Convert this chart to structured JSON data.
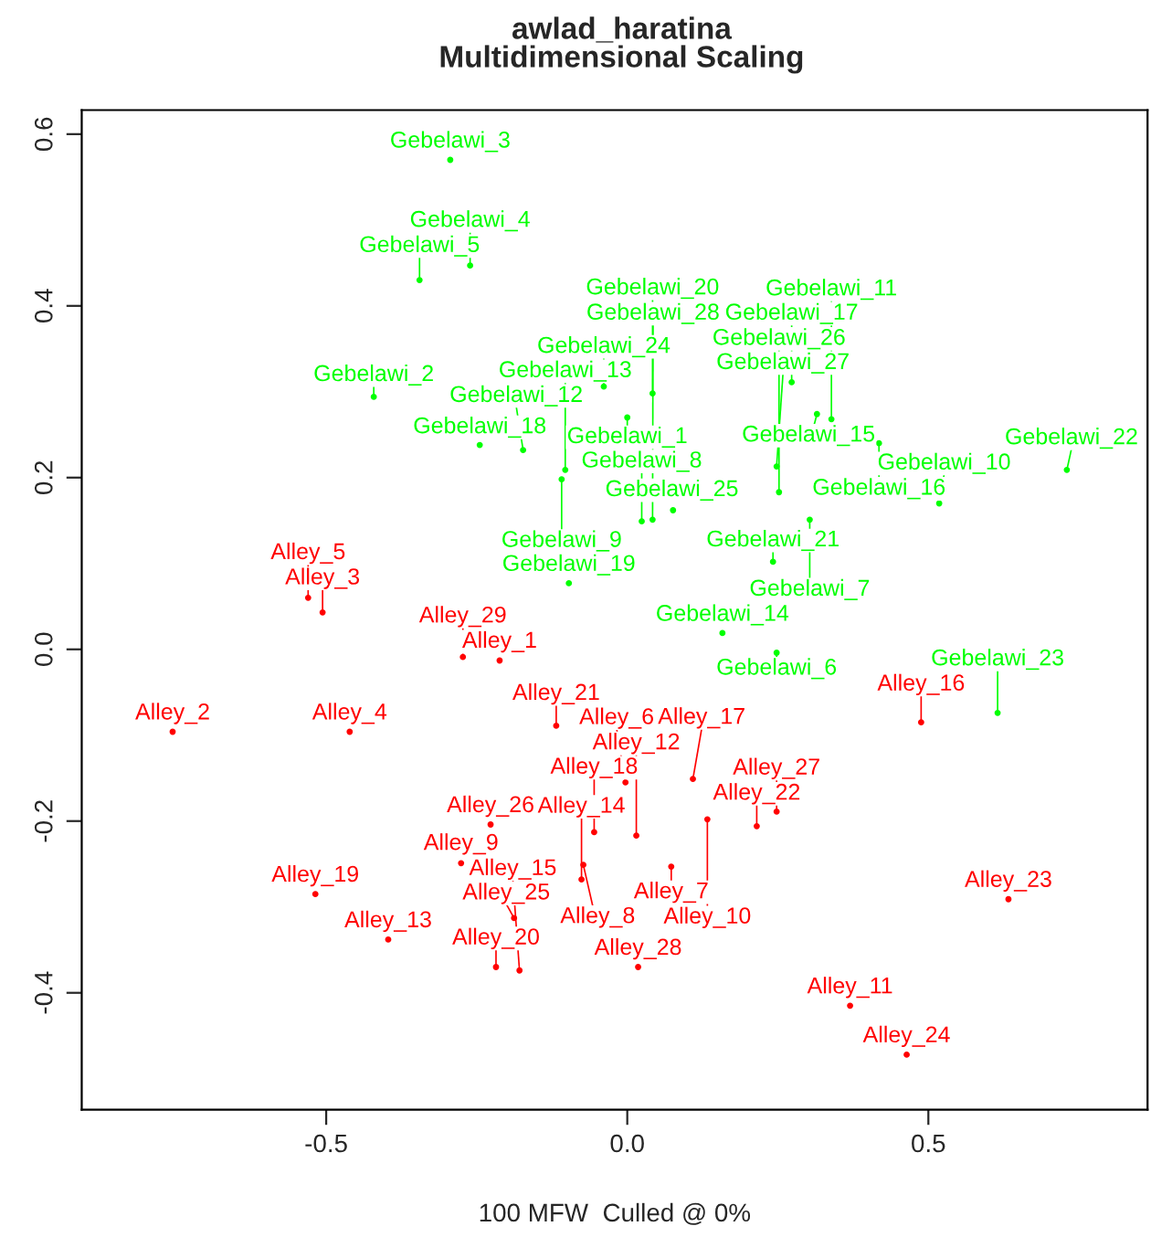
{
  "chart_data": {
    "type": "scatter",
    "title": "awlad_haratina",
    "subtitle": "Multidimensional Scaling",
    "xlabel": "100 MFW  Culled @ 0%",
    "xlim": [
      -0.906,
      0.864
    ],
    "ylim": [
      -0.536,
      0.628
    ],
    "xticks": [
      {
        "value": -0.5,
        "label": "-0.5"
      },
      {
        "value": 0.0,
        "label": "0.0"
      },
      {
        "value": 0.5,
        "label": "0.5"
      }
    ],
    "yticks": [
      {
        "value": -0.4,
        "label": "-0.4"
      },
      {
        "value": -0.2,
        "label": "-0.2"
      },
      {
        "value": 0.0,
        "label": "0.0"
      },
      {
        "value": 0.2,
        "label": "0.2"
      },
      {
        "value": 0.4,
        "label": "0.4"
      },
      {
        "value": 0.6,
        "label": "0.6"
      }
    ],
    "grid": false,
    "marker": "circle",
    "series": [
      {
        "color": "#00ff00",
        "x": [
          0.0,
          -0.421,
          -0.294,
          -0.261,
          -0.345,
          0.248,
          0.303,
          0.024,
          -0.109,
          0.518,
          0.339,
          -0.173,
          -0.103,
          0.158,
          0.315,
          0.418,
          0.273,
          -0.245,
          -0.097,
          0.042,
          0.242,
          0.73,
          0.615,
          -0.039,
          0.076,
          0.252,
          0.248,
          0.042
        ],
        "values": [
          0.27,
          0.294,
          0.57,
          0.447,
          0.43,
          -0.004,
          0.151,
          0.149,
          0.198,
          0.17,
          0.268,
          0.232,
          0.209,
          0.019,
          0.274,
          0.24,
          0.311,
          0.238,
          0.077,
          0.298,
          0.102,
          0.209,
          -0.074,
          0.306,
          0.162,
          0.183,
          0.213,
          0.151
        ]
      },
      {
        "color": "#ff0000",
        "x": [
          -0.212,
          -0.755,
          -0.506,
          -0.461,
          -0.53,
          -0.003,
          0.073,
          -0.073,
          -0.276,
          0.133,
          0.37,
          0.015,
          -0.397,
          -0.076,
          -0.179,
          0.488,
          0.109,
          -0.055,
          -0.518,
          -0.218,
          -0.118,
          0.215,
          0.633,
          0.464,
          -0.188,
          -0.227,
          0.248,
          0.018,
          -0.273
        ],
        "values": [
          -0.013,
          -0.096,
          0.043,
          -0.096,
          0.06,
          -0.155,
          -0.253,
          -0.251,
          -0.249,
          -0.198,
          -0.415,
          -0.217,
          -0.338,
          -0.268,
          -0.374,
          -0.085,
          -0.151,
          -0.213,
          -0.285,
          -0.37,
          -0.089,
          -0.206,
          -0.291,
          -0.472,
          -0.313,
          -0.204,
          -0.189,
          -0.37,
          -0.009
        ]
      }
    ],
    "annotations": [
      {
        "text": "Gebelawi_1",
        "x": 0.0,
        "y": 0.27
      },
      {
        "text": "Gebelawi_2",
        "x": -0.421,
        "y": 0.294
      },
      {
        "text": "Gebelawi_3",
        "x": -0.294,
        "y": 0.57
      },
      {
        "text": "Gebelawi_4",
        "x": -0.261,
        "y": 0.447
      },
      {
        "text": "Gebelawi_5",
        "x": -0.345,
        "y": 0.43
      },
      {
        "text": "Gebelawi_6",
        "x": 0.248,
        "y": -0.004
      },
      {
        "text": "Gebelawi_7",
        "x": 0.303,
        "y": 0.151
      },
      {
        "text": "Gebelawi_8",
        "x": 0.024,
        "y": 0.149
      },
      {
        "text": "Gebelawi_9",
        "x": -0.109,
        "y": 0.198
      },
      {
        "text": "Gebelawi_10",
        "x": 0.518,
        "y": 0.17
      },
      {
        "text": "Gebelawi_11",
        "x": 0.339,
        "y": 0.268
      },
      {
        "text": "Gebelawi_12",
        "x": -0.173,
        "y": 0.232
      },
      {
        "text": "Gebelawi_13",
        "x": -0.103,
        "y": 0.209
      },
      {
        "text": "Gebelawi_14",
        "x": 0.158,
        "y": 0.019
      },
      {
        "text": "Gebelawi_15",
        "x": 0.315,
        "y": 0.274
      },
      {
        "text": "Gebelawi_16",
        "x": 0.418,
        "y": 0.24
      },
      {
        "text": "Gebelawi_17",
        "x": 0.273,
        "y": 0.311
      },
      {
        "text": "Gebelawi_18",
        "x": -0.245,
        "y": 0.238
      },
      {
        "text": "Gebelawi_19",
        "x": -0.097,
        "y": 0.077
      },
      {
        "text": "Gebelawi_20",
        "x": 0.042,
        "y": 0.298
      },
      {
        "text": "Gebelawi_21",
        "x": 0.242,
        "y": 0.102
      },
      {
        "text": "Gebelawi_22",
        "x": 0.73,
        "y": 0.209
      },
      {
        "text": "Gebelawi_23",
        "x": 0.615,
        "y": -0.074
      },
      {
        "text": "Gebelawi_24",
        "x": -0.039,
        "y": 0.306
      },
      {
        "text": "Gebelawi_25",
        "x": 0.076,
        "y": 0.162
      },
      {
        "text": "Gebelawi_26",
        "x": 0.252,
        "y": 0.183
      },
      {
        "text": "Gebelawi_27",
        "x": 0.248,
        "y": 0.213
      },
      {
        "text": "Gebelawi_28",
        "x": 0.042,
        "y": 0.151
      },
      {
        "text": "Alley_1",
        "x": -0.212,
        "y": -0.013
      },
      {
        "text": "Alley_2",
        "x": -0.755,
        "y": -0.096
      },
      {
        "text": "Alley_3",
        "x": -0.506,
        "y": 0.043
      },
      {
        "text": "Alley_4",
        "x": -0.461,
        "y": -0.096
      },
      {
        "text": "Alley_5",
        "x": -0.53,
        "y": 0.06
      },
      {
        "text": "Alley_6",
        "x": -0.003,
        "y": -0.155
      },
      {
        "text": "Alley_7",
        "x": 0.073,
        "y": -0.253
      },
      {
        "text": "Alley_8",
        "x": -0.073,
        "y": -0.251
      },
      {
        "text": "Alley_9",
        "x": -0.276,
        "y": -0.249
      },
      {
        "text": "Alley_10",
        "x": 0.133,
        "y": -0.198
      },
      {
        "text": "Alley_11",
        "x": 0.37,
        "y": -0.415
      },
      {
        "text": "Alley_12",
        "x": 0.015,
        "y": -0.217
      },
      {
        "text": "Alley_13",
        "x": -0.397,
        "y": -0.338
      },
      {
        "text": "Alley_14",
        "x": -0.076,
        "y": -0.268
      },
      {
        "text": "Alley_15",
        "x": -0.179,
        "y": -0.374
      },
      {
        "text": "Alley_16",
        "x": 0.488,
        "y": -0.085
      },
      {
        "text": "Alley_17",
        "x": 0.109,
        "y": -0.151
      },
      {
        "text": "Alley_18",
        "x": -0.055,
        "y": -0.213
      },
      {
        "text": "Alley_19",
        "x": -0.518,
        "y": -0.285
      },
      {
        "text": "Alley_20",
        "x": -0.218,
        "y": -0.37
      },
      {
        "text": "Alley_21",
        "x": -0.118,
        "y": -0.089
      },
      {
        "text": "Alley_22",
        "x": 0.215,
        "y": -0.206
      },
      {
        "text": "Alley_23",
        "x": 0.633,
        "y": -0.291
      },
      {
        "text": "Alley_24",
        "x": 0.464,
        "y": -0.472
      },
      {
        "text": "Alley_25",
        "x": -0.188,
        "y": -0.313
      },
      {
        "text": "Alley_26",
        "x": -0.227,
        "y": -0.204
      },
      {
        "text": "Alley_27",
        "x": 0.248,
        "y": -0.189
      },
      {
        "text": "Alley_28",
        "x": 0.018,
        "y": -0.37
      },
      {
        "text": "Alley_29",
        "x": -0.273,
        "y": -0.009
      }
    ]
  }
}
